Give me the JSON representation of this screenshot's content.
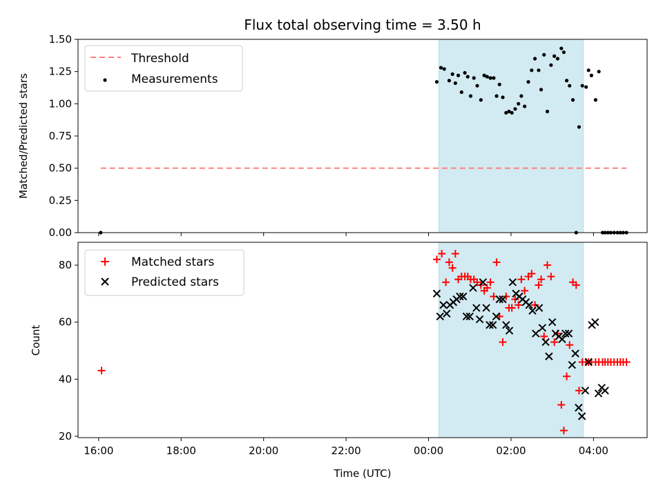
{
  "chart_data": {
    "title": "Flux total observing time = 3.50 h",
    "xlabel": "Time (UTC)",
    "x_tick_labels": [
      "16:00",
      "18:00",
      "20:00",
      "22:00",
      "00:00",
      "02:00",
      "04:00"
    ],
    "x_ticks_hours": [
      16,
      18,
      20,
      22,
      24,
      26,
      28
    ],
    "xlim_hours": [
      15.5,
      29.3
    ],
    "shaded_span_hours": [
      24.25,
      27.75
    ],
    "colors": {
      "shade": "#add8e6",
      "threshold": "#ff8080",
      "measurement": "#000000",
      "matched": "#ff0000",
      "predicted": "#000000"
    },
    "panels": [
      {
        "type": "scatter",
        "ylabel": "Matched/Predicted stars",
        "ylim": [
          0,
          1.5
        ],
        "y_ticks": [
          0,
          0.25,
          0.5,
          0.75,
          1.0,
          1.25,
          1.5
        ],
        "y_tick_labels": [
          "0.00",
          "0.25",
          "0.50",
          "0.75",
          "1.00",
          "1.25",
          "1.50"
        ],
        "legend": {
          "placement": "top-left",
          "entries": [
            "Threshold",
            "Measurements"
          ]
        },
        "threshold": {
          "name": "Threshold",
          "value": 0.5,
          "x_range_hours": [
            16.05,
            28.8
          ]
        },
        "series": [
          {
            "name": "Measurements",
            "marker": "dot",
            "x_hours": [
              16.05,
              24.2,
              24.3,
              24.38,
              24.5,
              24.58,
              24.65,
              24.72,
              24.8,
              24.88,
              24.95,
              25.02,
              25.1,
              25.18,
              25.27,
              25.35,
              25.42,
              25.5,
              25.58,
              25.65,
              25.72,
              25.8,
              25.88,
              25.95,
              26.02,
              26.1,
              26.18,
              26.25,
              26.33,
              26.42,
              26.5,
              26.58,
              26.67,
              26.73,
              26.8,
              26.88,
              26.97,
              27.05,
              27.13,
              27.22,
              27.28,
              27.35,
              27.42,
              27.5,
              27.58,
              27.65,
              27.73,
              27.82,
              27.88,
              27.95,
              28.05,
              28.13,
              28.22,
              28.28,
              28.35,
              28.42,
              28.5,
              28.58,
              28.65,
              28.72,
              28.8
            ],
            "y": [
              0,
              1.17,
              1.28,
              1.27,
              1.18,
              1.23,
              1.16,
              1.22,
              1.09,
              1.24,
              1.21,
              1.06,
              1.2,
              1.14,
              1.03,
              1.22,
              1.21,
              1.2,
              1.2,
              1.06,
              1.15,
              1.05,
              0.93,
              0.94,
              0.93,
              0.96,
              1.0,
              1.06,
              0.98,
              1.17,
              1.26,
              1.35,
              1.26,
              1.11,
              1.38,
              0.94,
              1.3,
              1.37,
              1.35,
              1.43,
              1.4,
              1.18,
              1.14,
              1.03,
              0.0,
              0.82,
              1.14,
              1.13,
              1.26,
              1.22,
              1.03,
              1.25,
              0.0,
              0.0,
              0.0,
              0.0,
              0.0,
              0.0,
              0.0,
              0.0,
              0.0
            ]
          }
        ]
      },
      {
        "type": "scatter",
        "ylabel": "Count",
        "ylim": [
          19.5,
          88
        ],
        "y_ticks": [
          20,
          40,
          60,
          80
        ],
        "y_tick_labels": [
          "20",
          "40",
          "60",
          "80"
        ],
        "legend": {
          "placement": "top-left",
          "entries": [
            "Matched stars",
            "Predicted stars"
          ]
        },
        "series": [
          {
            "name": "Matched stars",
            "marker": "plus",
            "x_hours": [
              16.07,
              24.2,
              24.32,
              24.42,
              24.5,
              24.58,
              24.65,
              24.72,
              24.8,
              24.88,
              24.95,
              25.02,
              25.1,
              25.18,
              25.27,
              25.35,
              25.42,
              25.5,
              25.58,
              25.65,
              25.72,
              25.8,
              25.88,
              25.95,
              26.02,
              26.1,
              26.18,
              26.25,
              26.33,
              26.42,
              26.5,
              26.58,
              26.67,
              26.73,
              26.8,
              26.88,
              26.97,
              27.05,
              27.13,
              27.22,
              27.28,
              27.35,
              27.42,
              27.5,
              27.58,
              27.65,
              27.73,
              27.82,
              27.88,
              27.95,
              28.05,
              28.13,
              28.22,
              28.28,
              28.35,
              28.42,
              28.5,
              28.58,
              28.65,
              28.72,
              28.8
            ],
            "y": [
              43,
              82,
              84,
              74,
              81,
              79,
              84,
              75,
              76,
              76,
              76,
              75,
              75,
              74,
              73,
              71,
              72,
              74,
              69,
              81,
              62,
              53,
              69,
              65,
              65,
              68,
              66,
              75,
              71,
              76,
              77,
              66,
              73,
              75,
              55,
              80,
              76,
              53,
              56,
              31,
              22,
              41,
              52,
              74,
              73,
              36,
              46,
              46,
              46,
              46,
              46,
              46,
              46,
              46,
              46,
              46,
              46,
              46,
              46,
              46,
              46
            ]
          },
          {
            "name": "Predicted stars",
            "marker": "x",
            "x_hours": [
              24.2,
              24.28,
              24.36,
              24.44,
              24.52,
              24.6,
              24.68,
              24.76,
              24.84,
              24.92,
              25.0,
              25.08,
              25.16,
              25.24,
              25.32,
              25.4,
              25.48,
              25.56,
              25.64,
              25.72,
              25.8,
              25.88,
              25.96,
              26.04,
              26.12,
              26.2,
              26.28,
              26.36,
              26.44,
              26.52,
              26.6,
              26.68,
              26.76,
              26.84,
              26.92,
              27.0,
              27.08,
              27.16,
              27.24,
              27.32,
              27.4,
              27.48,
              27.56,
              27.64,
              27.72,
              27.8,
              27.88,
              27.96,
              28.04,
              28.12,
              28.2,
              28.28
            ],
            "y": [
              70,
              62,
              66,
              63,
              66,
              67,
              68,
              69,
              69,
              62,
              62,
              72,
              65,
              61,
              74,
              65,
              59,
              59,
              62,
              68,
              68,
              59,
              57,
              74,
              70,
              69,
              68,
              67,
              66,
              64,
              56,
              65,
              58,
              53,
              48,
              60,
              56,
              55,
              54,
              56,
              56,
              45,
              49,
              30,
              27,
              36,
              46,
              59,
              60,
              35,
              37,
              36
            ]
          }
        ]
      }
    ]
  }
}
